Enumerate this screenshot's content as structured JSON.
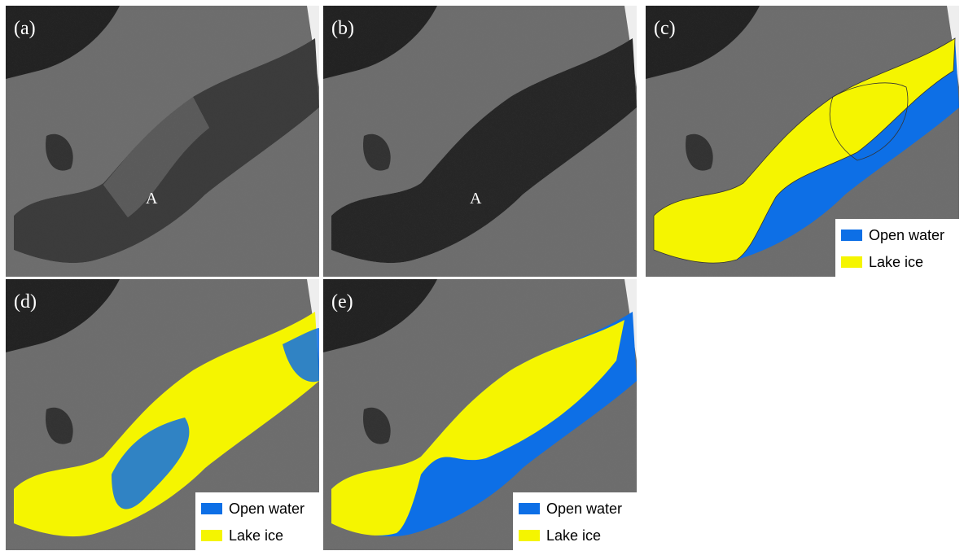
{
  "panels": [
    {
      "label": "(a)",
      "annotation": "A"
    },
    {
      "label": "(b)",
      "annotation": "A"
    },
    {
      "label": "(c)",
      "legend": [
        "Open water",
        "Lake ice"
      ]
    },
    {
      "label": "(d)",
      "legend": [
        "Open water",
        "Lake ice"
      ]
    },
    {
      "label": "(e)",
      "legend": [
        "Open water",
        "Lake ice"
      ]
    }
  ]
}
